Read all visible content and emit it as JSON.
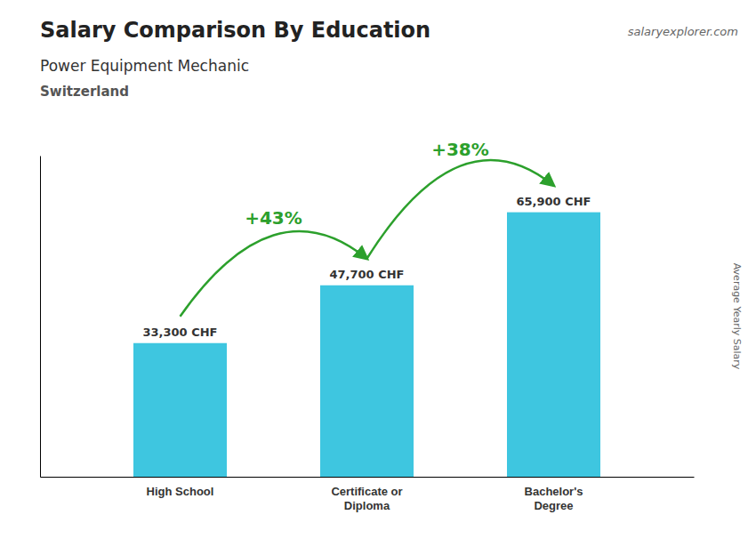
{
  "chart_data": {
    "type": "bar",
    "title": "Salary Comparison By Education",
    "subtitle": [
      "Power Equipment Mechanic",
      "Switzerland"
    ],
    "y_label": "Average Yearly Salary",
    "categories": [
      "High School",
      "Certificate or\nDiploma",
      "Bachelor's\nDegree"
    ],
    "values": [
      33300,
      47700,
      65900
    ],
    "value_labels": [
      "33,300 CHF",
      "47,700 CHF",
      "65,900 CHF"
    ],
    "color": "#3ec6e0",
    "ylim": [
      0,
      80000
    ],
    "yticks": [],
    "grid": false,
    "data_labels": true,
    "tick_labels": "x",
    "annotations": [
      {
        "text": "salaryexplorer.com"
      },
      {
        "text": "+43%",
        "between": [
          0,
          1
        ]
      },
      {
        "text": "+38%",
        "between": [
          1,
          2
        ]
      }
    ]
  }
}
